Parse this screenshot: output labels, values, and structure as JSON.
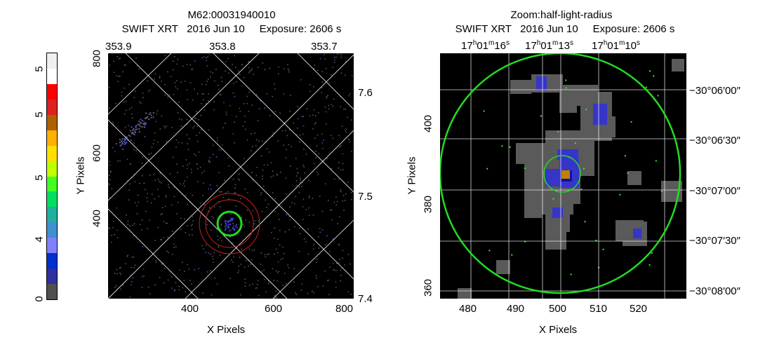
{
  "left": {
    "title_line1": "M62:00031940010",
    "title_line2": "SWIFT XRT   2016 Jun 10     Exposure: 2606 s",
    "top_ticks": [
      "353.9",
      "353.8",
      "353.7"
    ],
    "right_ticks": [
      "7.6",
      "7.5",
      "7.4"
    ],
    "x_ticks": [
      "400",
      "600",
      "800"
    ],
    "y_ticks": [
      "800",
      "600",
      "400"
    ],
    "xlabel": "X Pixels",
    "ylabel": "Y Pixels"
  },
  "right": {
    "title_line1": "Zoom:half-light-radius",
    "title_line2": "SWIFT XRT   2016 Jun 10     Exposure: 2606 s",
    "ra_ticks": [
      {
        "h": "17",
        "m": "01",
        "s": "16"
      },
      {
        "h": "17",
        "m": "01",
        "s": "13"
      },
      {
        "h": "17",
        "m": "01",
        "s": "10"
      }
    ],
    "dec_ticks": [
      "−30°06′00″",
      "−30°06′30″",
      "−30°07′00″",
      "−30°07′30″",
      "−30°08′00″"
    ],
    "x_ticks": [
      "480",
      "490",
      "500",
      "510",
      "520"
    ],
    "y_ticks": [
      "400",
      "380",
      "360"
    ],
    "xlabel": "X Pixels",
    "ylabel": "Y Pixels"
  },
  "colorbar": {
    "tick_labels": [
      "5",
      "5",
      "5",
      "4",
      "0"
    ],
    "colors": [
      "#f0f0f0",
      "#ffffff",
      "#ff0000",
      "#e02020",
      "#b06000",
      "#ffb000",
      "#ffe000",
      "#c0ff00",
      "#40ff20",
      "#00e060",
      "#20b0a0",
      "#4090d0",
      "#8080ff",
      "#0030d0",
      "#3030a0",
      "#505050"
    ]
  }
}
